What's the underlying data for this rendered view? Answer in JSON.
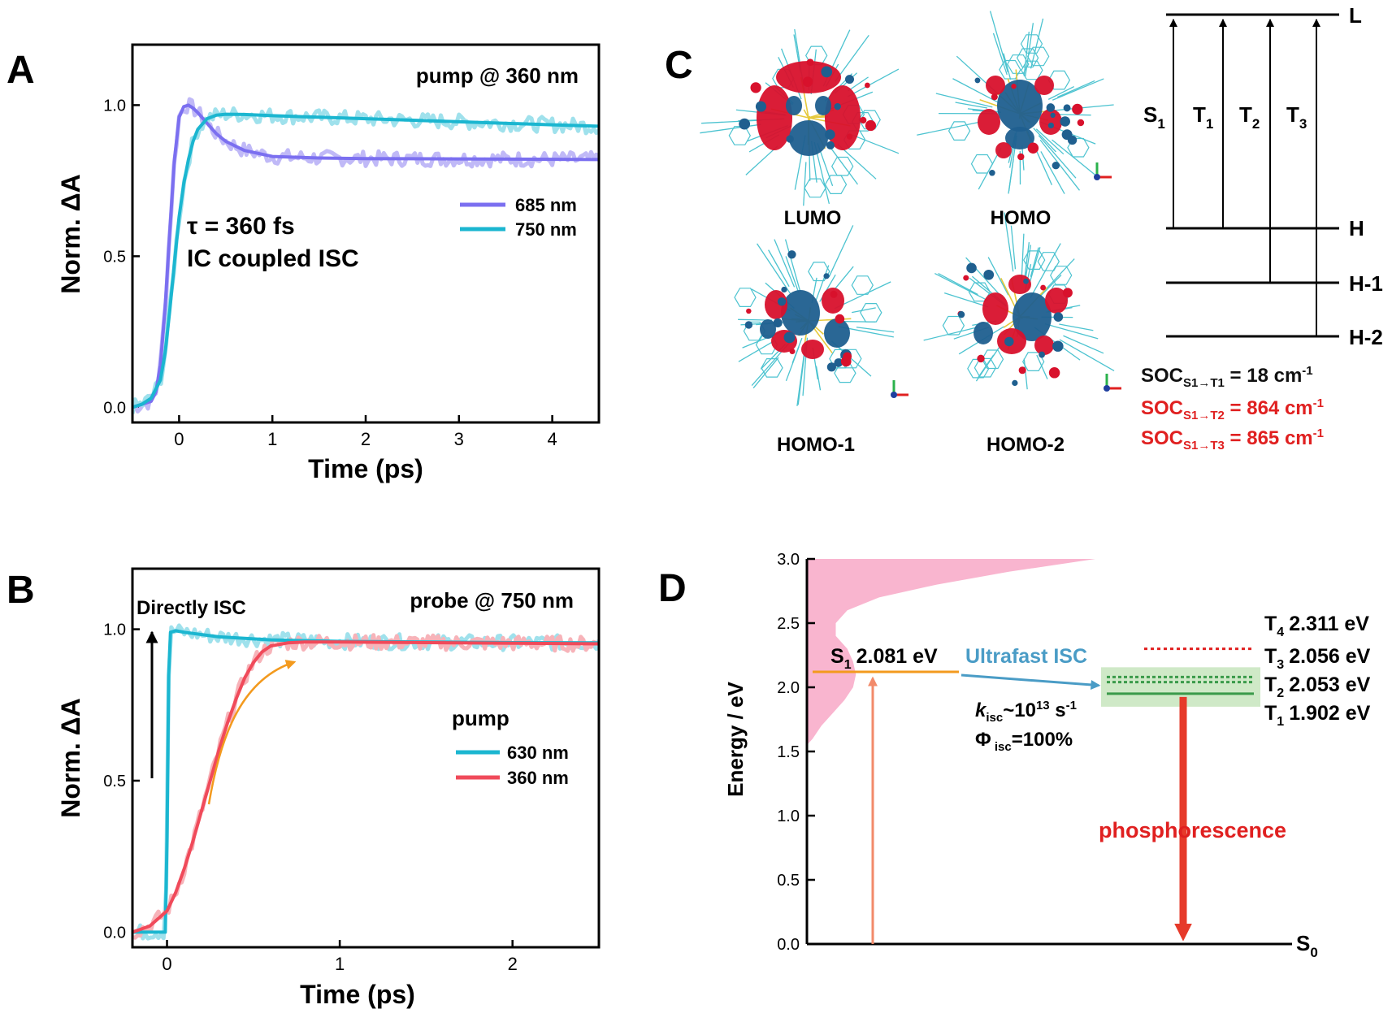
{
  "panels": {
    "A": "A",
    "B": "B",
    "C": "C",
    "D": "D"
  },
  "colors": {
    "purple": "#7b6ff0",
    "purple_light": "#c0b9f7",
    "cyan": "#1bb6d0",
    "cyan_light": "#9fe1ec",
    "red": "#f04a5a",
    "red_light": "#f7b3b9",
    "orange": "#f39a1e",
    "pink": "#f9b5cf",
    "isc_blue": "#4a9cc6",
    "green": "#3a9a4a",
    "green_box": "#cfe9c7",
    "dark_red": "#e02020",
    "mo_red": "#d8112c",
    "mo_blue": "#1f5f8f",
    "stick": "#4cc3d0"
  },
  "chart_data": [
    {
      "id": "A",
      "type": "line",
      "xlabel": "Time (ps)",
      "ylabel": "Norm. ΔA",
      "xlim": [
        -0.5,
        4.5
      ],
      "ylim": [
        -0.05,
        1.2
      ],
      "xticks": [
        "0",
        "1",
        "2",
        "3",
        "4"
      ],
      "yticks": [
        "0.0",
        "0.5",
        "1.0"
      ],
      "annotation_top": "pump @  360 nm",
      "annotation_tau": "τ = 360 fs",
      "annotation_ic": "IC coupled ISC",
      "legend_position": "right-middle",
      "series": [
        {
          "name": "685 nm",
          "color": "#7b6ff0",
          "x": [
            -0.5,
            -0.4,
            -0.3,
            -0.25,
            -0.2,
            -0.15,
            -0.1,
            -0.05,
            0.0,
            0.05,
            0.1,
            0.15,
            0.2,
            0.3,
            0.4,
            0.5,
            0.7,
            1.0,
            1.5,
            2.0,
            3.0,
            4.5
          ],
          "y": [
            0.0,
            0.01,
            0.02,
            0.05,
            0.14,
            0.33,
            0.58,
            0.82,
            0.96,
            0.995,
            1.0,
            0.99,
            0.975,
            0.94,
            0.905,
            0.88,
            0.85,
            0.83,
            0.825,
            0.823,
            0.822,
            0.82
          ]
        },
        {
          "name": "750 nm",
          "color": "#1bb6d0",
          "x": [
            -0.5,
            -0.4,
            -0.3,
            -0.2,
            -0.15,
            -0.1,
            -0.05,
            0.0,
            0.05,
            0.1,
            0.15,
            0.2,
            0.3,
            0.4,
            0.5,
            0.7,
            1.0,
            1.5,
            2.0,
            3.0,
            4.0,
            4.5
          ],
          "y": [
            0.0,
            0.01,
            0.03,
            0.09,
            0.18,
            0.32,
            0.48,
            0.63,
            0.74,
            0.82,
            0.88,
            0.92,
            0.955,
            0.967,
            0.97,
            0.969,
            0.965,
            0.96,
            0.955,
            0.945,
            0.935,
            0.93
          ]
        }
      ]
    },
    {
      "id": "B",
      "type": "line",
      "xlabel": "Time (ps)",
      "ylabel": "Norm. ΔA",
      "xlim": [
        -0.2,
        2.5
      ],
      "ylim": [
        -0.05,
        1.2
      ],
      "xticks": [
        "0",
        "1",
        "2"
      ],
      "yticks": [
        "0.0",
        "0.5",
        "1.0"
      ],
      "annotation_top": "probe @ 750 nm",
      "annotation_direct": "Directly ISC",
      "legend_title": "pump",
      "legend_position": "right-middle",
      "series": [
        {
          "name": "630 nm",
          "color": "#1bb6d0",
          "x": [
            -0.2,
            -0.01,
            0.0,
            0.01,
            0.02,
            0.05,
            0.1,
            0.3,
            0.6,
            1.0,
            1.5,
            2.0,
            2.5
          ],
          "y": [
            0.0,
            0.0,
            0.3,
            0.85,
            0.99,
            0.995,
            0.99,
            0.975,
            0.965,
            0.96,
            0.958,
            0.956,
            0.955
          ]
        },
        {
          "name": "360 nm",
          "color": "#f04a5a",
          "x": [
            -0.2,
            -0.1,
            0.0,
            0.05,
            0.1,
            0.15,
            0.2,
            0.25,
            0.3,
            0.35,
            0.4,
            0.45,
            0.5,
            0.55,
            0.6,
            0.7,
            0.8,
            1.0,
            1.5,
            2.0,
            2.5
          ],
          "y": [
            0.0,
            0.02,
            0.07,
            0.13,
            0.21,
            0.3,
            0.4,
            0.5,
            0.6,
            0.69,
            0.77,
            0.84,
            0.89,
            0.925,
            0.945,
            0.955,
            0.958,
            0.958,
            0.956,
            0.954,
            0.952
          ]
        }
      ]
    },
    {
      "id": "D",
      "type": "diagram",
      "ylabel": "Energy / eV",
      "ylim": [
        0.0,
        3.0
      ],
      "yticks": [
        "0.0",
        "0.5",
        "1.0",
        "1.5",
        "2.0",
        "2.5",
        "3.0"
      ],
      "s0_label": "S",
      "s0_sub": "0",
      "s1": {
        "label": "S",
        "sub": "1",
        "text": "2.081 eV",
        "energy": 2.12
      },
      "isc_label": "Ultrafast ISC",
      "kisc": {
        "k": "k",
        "sub": "isc",
        "text": "~10",
        "sup": "13",
        "unit": " s",
        "unit_sup": "-1"
      },
      "phi": {
        "symbol": "Φ",
        "sub": " isc",
        "text": "=100%"
      },
      "phosphorescence": "phosphorescence",
      "triplets": [
        {
          "label": "T",
          "sub": "4",
          "text": "2.311 eV",
          "energy": 2.3,
          "style": "dotted",
          "color": "#e02020"
        },
        {
          "label": "T",
          "sub": "3",
          "text": "2.056 eV",
          "energy": 2.08,
          "style": "dotted",
          "color": "#3a9a4a"
        },
        {
          "label": "T",
          "sub": "2",
          "text": "2.053 eV",
          "energy": 2.04,
          "style": "dotted",
          "color": "#3a9a4a"
        },
        {
          "label": "T",
          "sub": "1",
          "text": "1.902 eV",
          "energy": 1.95,
          "style": "solid",
          "color": "#3a9a4a"
        }
      ],
      "absorption_profile": {
        "energy": [
          1.55,
          1.6,
          1.7,
          1.8,
          1.9,
          2.0,
          2.1,
          2.2,
          2.3,
          2.4,
          2.5,
          2.6,
          2.7,
          2.8,
          2.9,
          3.0
        ],
        "intensity": [
          0.0,
          0.02,
          0.05,
          0.09,
          0.13,
          0.16,
          0.17,
          0.16,
          0.14,
          0.1,
          0.1,
          0.14,
          0.25,
          0.45,
          0.7,
          1.0
        ]
      }
    }
  ],
  "panelC": {
    "mo_labels": [
      "LUMO",
      "HOMO",
      "HOMO-1",
      "HOMO-2"
    ],
    "levels": [
      "L",
      "H",
      "H-1",
      "H-2"
    ],
    "transitions": [
      {
        "label": "S",
        "sub": "1"
      },
      {
        "label": "T",
        "sub": "1"
      },
      {
        "label": "T",
        "sub": "2"
      },
      {
        "label": "T",
        "sub": "3"
      }
    ],
    "soc": [
      {
        "prefix": "SOC",
        "sub": "S1→T1",
        "text": " = 18 cm",
        "sup": "-1",
        "color": "#111111"
      },
      {
        "prefix": "SOC",
        "sub": "S1→T2",
        "text": " = 864 cm",
        "sup": "-1",
        "color": "#e02020"
      },
      {
        "prefix": "SOC",
        "sub": "S1→T3",
        "text": " = 865 cm",
        "sup": "-1",
        "color": "#e02020"
      }
    ]
  }
}
